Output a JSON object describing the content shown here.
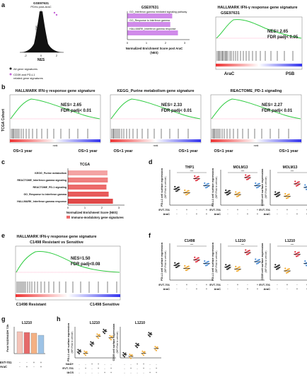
{
  "panels": {
    "a": {
      "letter": "a",
      "volcano_title_1": "GSE97631",
      "volcano_title_2": "PDXs post-AraC",
      "volcano_xlabel": "NES",
      "volcano_ylabel": "-log10 FDR",
      "volcano_ticks_x": [
        "-2",
        "0",
        "2"
      ],
      "legend": [
        "All gene signatures",
        "CD39 and PD-L1",
        "related gene signatures"
      ],
      "bar_title": "GSE97631",
      "bar_labels": [
        "GO_Interferon gamma mediated signaling pathway",
        "GO_Response to interferon gamma",
        "HALLMARK_Interferon gamma response"
      ],
      "bar_values": [
        2.35,
        2.25,
        2.65
      ],
      "bar_ticks": [
        "0",
        "1",
        "2",
        "3"
      ],
      "bar_xlabel_1": "Normalized Enrichment Score post AraC",
      "bar_xlabel_2": "(NES)",
      "gsea_title_1": "HALLMARK IFN-γ response gene signature",
      "gsea_title_2": "GSE97631",
      "gsea_nes": "NES= 2.65",
      "gsea_fdr": "FDR padj< 0.05",
      "gsea_left": "AraC",
      "gsea_right": "PSB"
    },
    "b": {
      "letter": "b",
      "side_label": "TCGA Cohort",
      "plots": [
        {
          "title": "HALLMARK IFN-γ response gene signature",
          "nes": "NES= 2.65",
          "fdr": "FDR padj< 0.01"
        },
        {
          "title": "KEGG_Purine metabolism gene signature",
          "nes": "NES= 2.33",
          "fdr": "FDR padj< 0.01"
        },
        {
          "title": "REACTOME_PD-1 signaling",
          "nes": "NES= 2.27",
          "fdr": "FDR padj< 0.01"
        }
      ],
      "left_label": "OS<1 year",
      "right_label": "OS>1 year",
      "rank": "rank"
    },
    "c": {
      "letter": "c",
      "title": "TCGA",
      "labels": [
        "KEGG_Purine metabolism",
        "REACTOME_Interferon gamma signaling",
        "REACTOME_PD-1 signaling",
        "GO_Response to interferon gamma",
        "HALLMARK_Interferon gamma response"
      ],
      "values": [
        2.33,
        2.35,
        2.27,
        2.4,
        2.65
      ],
      "ticks": [
        "0",
        "1",
        "2",
        "3"
      ],
      "xlabel": "Normalized Enrichment Score (NES)",
      "legend": "Immuno-modulatory gene signatures"
    },
    "d": {
      "letter": "d",
      "plots": [
        {
          "title": "THP1",
          "ylabel": "PD-L1 cell surface expression"
        },
        {
          "title": "MOLM13",
          "ylabel": "PD-L1 cell surface expression"
        },
        {
          "title": "MOLM13",
          "ylabel": "CD39 cell surface expression"
        }
      ],
      "sublabel": "(MFI Fold to vehicle)",
      "row1": "EVT-701",
      "row2": "AraC"
    },
    "e": {
      "letter": "e",
      "title_1": "HALLMARK IFN-γ response gene signature",
      "title_2": "C1498 Resistant vs Sensitive",
      "nes": "NES=1.50",
      "fdr": "FDR padj<0.08",
      "left": "C1498 Resistant",
      "right": "C1498 Sensitive"
    },
    "f": {
      "letter": "f",
      "plots": [
        {
          "title": "C1498",
          "ylabel": "PD-L1 cell surface expression"
        },
        {
          "title": "L1210",
          "ylabel": "PD-L1 cell surface expression"
        },
        {
          "title": "L1210",
          "ylabel": "CD39 cell surface expression"
        }
      ],
      "sublabel": "(MFI Fold to vehicle)",
      "row1": "EVT-701",
      "row2": "AraC"
    },
    "g": {
      "letter": "g",
      "title": "L1210",
      "ylabel": "Fold NAD/NADH 72h",
      "row1": "EVT-701",
      "row2": "AraC"
    },
    "h": {
      "letter": "h",
      "plots": [
        {
          "title": "L1210",
          "ylabel": "PD-L1 cell surface expression"
        },
        {
          "title": "L1210",
          "ylabel": "CD39 cell surface expression"
        }
      ],
      "sublabel": "(MFI Fold to vehicle)",
      "row1": "NAD+",
      "row2": "EVT-701",
      "row3": "IACS"
    }
  }
}
